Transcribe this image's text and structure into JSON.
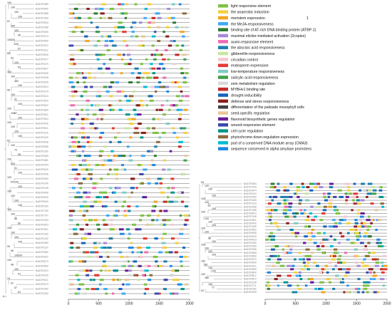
{
  "legend": [
    {
      "label": "light responsive element",
      "color": "#7dc242"
    },
    {
      "label": "the anaerobic induction",
      "color": "#f4d03f"
    },
    {
      "label": "meristem expression",
      "color": "#f5a623"
    },
    {
      "label": "the MeJA-responsiveness",
      "color": "#3fa9f5"
    },
    {
      "label": "binding site of AT-rich DNA binding protein (ATBP-1)",
      "color": "#2e7d32"
    },
    {
      "label": "maximal elicitor-mediated activation (2copies)",
      "color": "#a58ad6"
    },
    {
      "label": "auxin-responsive element",
      "color": "#f06ab0"
    },
    {
      "label": "the abscisic acid responsiveness",
      "color": "#1c7fb0"
    },
    {
      "label": "gibberellin-responsiveness",
      "color": "#c8e6a0"
    },
    {
      "label": "circadian control",
      "color": "#f6c6cf"
    },
    {
      "label": "endosperm expression",
      "color": "#e53935"
    },
    {
      "label": "low-temperature responsiveness",
      "color": "#80cbc4"
    },
    {
      "label": "salicylic acid responsiveness",
      "color": "#43a047"
    },
    {
      "label": "zein metabolism regulation",
      "color": "#d8d8d8"
    },
    {
      "label": "MYBHv1 binding site",
      "color": "#c62828"
    },
    {
      "label": "drought-inducibility",
      "color": "#1565c0"
    },
    {
      "label": "defense and stress responsiveness",
      "color": "#8b1e1e"
    },
    {
      "label": "differentiation of the palisade mesophyll cells",
      "color": "#424242"
    },
    {
      "label": "seed-specific regulation",
      "color": "#e8c79a"
    },
    {
      "label": "flavonoid biosynthetic genes regulation",
      "color": "#6a1b9a"
    },
    {
      "label": "wound-responsive element",
      "color": "#3949ab"
    },
    {
      "label": "cell cycle regulation",
      "color": "#009688"
    },
    {
      "label": "phytochrome down-regulation  expression",
      "color": "#8e6b3e"
    },
    {
      "label": "part of a conserved DNA module array (CMA3)",
      "color": "#00bcd4"
    },
    {
      "label": "sequence conserved in alpha amylase promoters",
      "color": "#1e88e5"
    }
  ],
  "extra_mark": "1",
  "axis": {
    "min": 0,
    "max": 2000,
    "ticks": [
      "0",
      "500",
      "1000",
      "1500",
      "2000"
    ]
  },
  "panel_left": {
    "genes": [
      "BoDOF0489",
      "BoDOF0490",
      "BoDOF0488",
      "BoDOF1499",
      "BoDOF3034",
      "BoDOF1468",
      "BoDOF3035",
      "BoDOF2073",
      "BoDOF2069",
      "BoDOF3113",
      "BoDOF3112",
      "BoDOF4006",
      "BoDOF0477",
      "BoDOF0479",
      "BoDOF3007",
      "BoDOF3008",
      "BoDOF2008",
      "BoDOF2005",
      "BoDOF0613",
      "BoDOF0174",
      "BoDOF1613",
      "BoDOF1520",
      "BoDOF3022",
      "BoDOF1660",
      "BoDOF2001",
      "BoDOF1524",
      "BoDOF2006",
      "BoDOF0021",
      "BoDOF1123",
      "BoDOF4109",
      "BoDOF0038",
      "BoDOF2086",
      "BoDOF1160",
      "BoDOF2469",
      "BoDOF1581",
      "BoDOF2044",
      "BoDOF4049",
      "BoDOF1046",
      "BoDOF4300",
      "BoDOF3140",
      "BoDOF2145",
      "BoDOF0408",
      "BoDOF4039",
      "BoDOF4040",
      "BoDOF4153",
      "BoDOF1760",
      "BoDOF1707",
      "BoDOF1333",
      "BoDOF0923",
      "BoDOF2301",
      "BoDOF1160",
      "BoDOF1100",
      "BoDOF4350",
      "BoDOF2137",
      "BoDOF3250",
      "BoDOF3321",
      "BoDOF4073",
      "BoDOF0590",
      "BoDOF4223",
      "BoDOF4225",
      "BoDOF0021",
      "BoDOF4273",
      "BoDOF1462",
      "BoDOF1262"
    ],
    "bootstraps": [
      "100",
      "100",
      "100",
      "100",
      "61",
      "100",
      "100",
      "96",
      "100",
      "100",
      "100",
      "57",
      "65",
      "63",
      "100",
      "53",
      "100",
      "100",
      "100",
      "100",
      "55",
      "100",
      "51",
      "100",
      "100",
      "100",
      "87",
      "100",
      "100",
      "100",
      "100",
      "100",
      "63",
      "100",
      "72",
      "98",
      "100",
      "100",
      "51",
      "100",
      "100",
      "54",
      "100",
      "100",
      "100",
      "100",
      "100",
      "100",
      "100",
      "100",
      "99",
      "60",
      "100",
      "100",
      "100",
      "100",
      "95",
      "96",
      "100",
      "100",
      "100",
      "98",
      "100",
      "91",
      "24",
      "92",
      "57",
      "61"
    ],
    "root_label": "A-I"
  },
  "panel_right": {
    "genes": [
      "BoDOF2654",
      "BoDOF1333",
      "BoDOF3474",
      "BoDOF4003",
      "BoDOF2350",
      "BoDOF3436",
      "BoDOF1233",
      "BoDOF0058",
      "BoDOF0185",
      "BoDOF4873",
      "BoDOF2108",
      "BoDOF0591",
      "BoDOF0442",
      "BoDOF3155",
      "BoDOF2652",
      "BoDOF4508",
      "BoDOF4009",
      "BoDOF4003",
      "BoDOF4259",
      "BoDOF3160",
      "BoDOF2068",
      "BoDOF0065",
      "BoDOF3960",
      "BoDOF2070",
      "BoDOF0009",
      "BoDOF0421",
      "BoDOF0669",
      "BoDOF3840",
      "BoDOF3817",
      "BoDOF0672",
      "BoDOF3108",
      "BoDOF2711",
      "BoDOF0182",
      "BoDOF0025"
    ],
    "bootstraps": [
      "53",
      "100",
      "100",
      "100",
      "100",
      "100",
      "51",
      "100",
      "100",
      "100",
      "100",
      "100",
      "100",
      "100",
      "54",
      "100",
      "100",
      "100",
      "100",
      "100",
      "100",
      "86",
      "100",
      "100",
      "100",
      "100",
      "100",
      "71",
      "52"
    ]
  }
}
